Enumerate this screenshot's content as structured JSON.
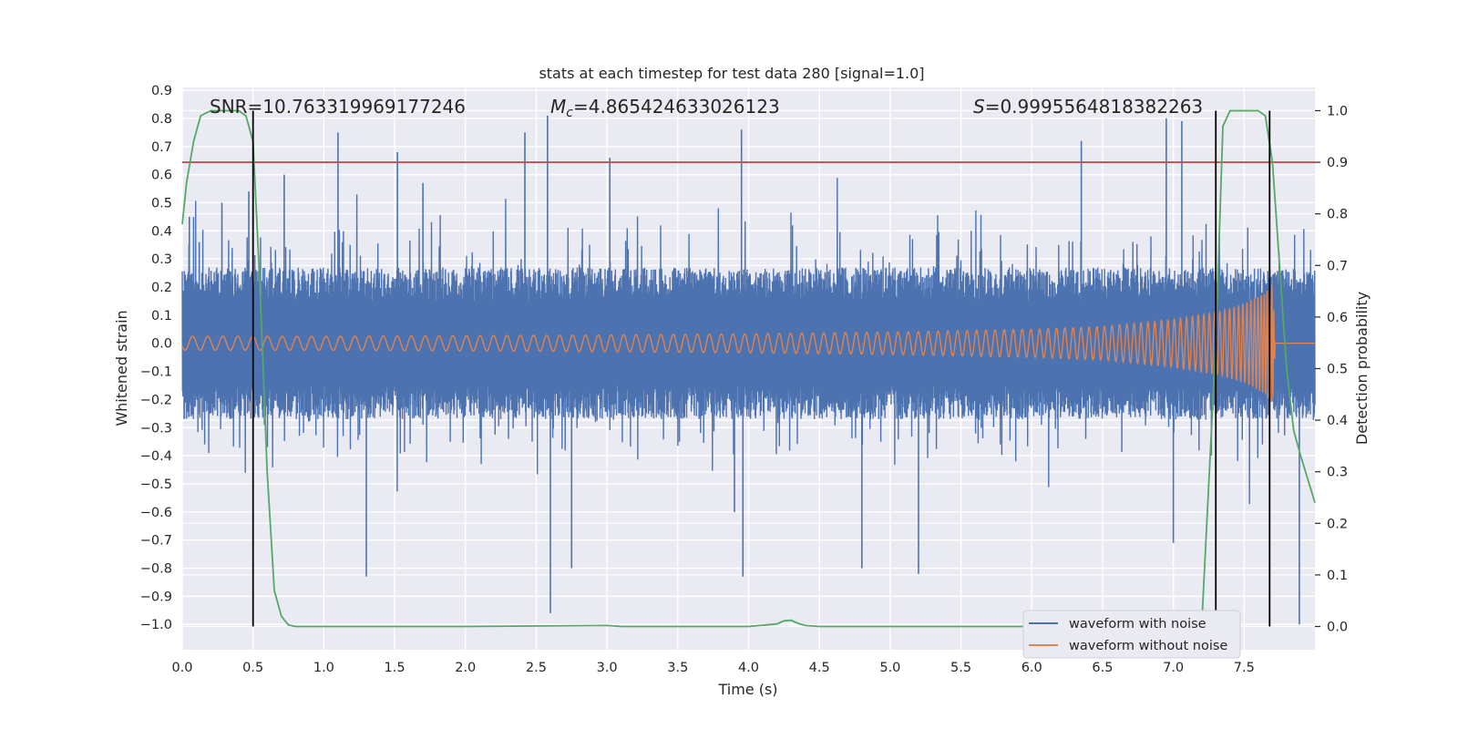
{
  "chart_data": {
    "type": "line",
    "title": "stats at each timestep for test data 280 [signal=1.0]",
    "xlabel": "Time (s)",
    "ylabel": "Whitened strain",
    "y2label": "Detection probability",
    "xlim": [
      0.0,
      8.0
    ],
    "ylim": [
      -1.09,
      0.91
    ],
    "y2lim": [
      -0.045,
      1.045
    ],
    "x_ticks": [
      0.0,
      0.5,
      1.0,
      1.5,
      2.0,
      2.5,
      3.0,
      3.5,
      4.0,
      4.5,
      5.0,
      5.5,
      6.0,
      6.5,
      7.0,
      7.5
    ],
    "x_tick_labels": [
      "0.0",
      "0.5",
      "1.0",
      "1.5",
      "2.0",
      "2.5",
      "3.0",
      "3.5",
      "4.0",
      "4.5",
      "5.0",
      "5.5",
      "6.0",
      "6.5",
      "7.0",
      "7.5"
    ],
    "y_ticks": [
      0.9,
      0.8,
      0.7,
      0.6,
      0.5,
      0.4,
      0.3,
      0.2,
      0.1,
      0.0,
      -0.1,
      -0.2,
      -0.3,
      -0.4,
      -0.5,
      -0.6,
      -0.7,
      -0.8,
      -0.9,
      -1.0
    ],
    "y_tick_labels": [
      "0.9",
      "0.8",
      "0.7",
      "0.6",
      "0.5",
      "0.4",
      "0.3",
      "0.2",
      "0.1",
      "0.0",
      "−0.1",
      "−0.2",
      "−0.3",
      "−0.4",
      "−0.5",
      "−0.6",
      "−0.7",
      "−0.8",
      "−0.9",
      "−1.0"
    ],
    "y2_ticks": [
      1.0,
      0.9,
      0.8,
      0.7,
      0.6,
      0.5,
      0.4,
      0.3,
      0.2,
      0.1,
      0.0
    ],
    "y2_tick_labels": [
      "1.0",
      "0.9",
      "0.8",
      "0.7",
      "0.6",
      "0.5",
      "0.4",
      "0.3",
      "0.2",
      "0.1",
      "0.0"
    ],
    "grid": true,
    "legend_position": "bottom-right",
    "annotations": [
      {
        "text": "SNR=10.763319969177246",
        "x": 0.2
      },
      {
        "text": "M_c=4.865424633026123",
        "x": 2.6
      },
      {
        "text": "S=0.9995564818382263",
        "x": 5.6
      }
    ],
    "threshold": {
      "axis": "y2",
      "value": 0.9,
      "color": "#c44e52"
    },
    "vertical_markers": [
      0.5,
      7.3,
      7.68
    ],
    "series": [
      {
        "name": "waveform with noise",
        "axis": "y",
        "color": "#4c72b0",
        "description_values": {
          "dense_band_range": [
            -0.27,
            0.27
          ],
          "spike_peaks": [
            {
              "x": 0.05,
              "y": 0.45
            },
            {
              "x": 0.12,
              "y": 0.36
            },
            {
              "x": 0.28,
              "y": 0.5
            },
            {
              "x": 0.47,
              "y": 0.54
            },
            {
              "x": 0.72,
              "y": 0.6
            },
            {
              "x": 1.1,
              "y": 0.75
            },
            {
              "x": 1.3,
              "y": -0.83
            },
            {
              "x": 1.52,
              "y": 0.68
            },
            {
              "x": 1.7,
              "y": 0.57
            },
            {
              "x": 2.42,
              "y": 0.75
            },
            {
              "x": 2.58,
              "y": 0.81
            },
            {
              "x": 2.6,
              "y": -0.96
            },
            {
              "x": 2.75,
              "y": -0.8
            },
            {
              "x": 3.02,
              "y": 0.66
            },
            {
              "x": 3.9,
              "y": -0.6
            },
            {
              "x": 3.95,
              "y": 0.76
            },
            {
              "x": 3.96,
              "y": -0.83
            },
            {
              "x": 4.8,
              "y": -0.8
            },
            {
              "x": 5.2,
              "y": -0.82
            },
            {
              "x": 6.35,
              "y": 0.72
            },
            {
              "x": 6.95,
              "y": 0.8
            },
            {
              "x": 7.0,
              "y": -0.71
            },
            {
              "x": 7.06,
              "y": 0.79
            },
            {
              "x": 7.89,
              "y": -1.0
            }
          ]
        }
      },
      {
        "name": "waveform without noise",
        "axis": "y",
        "color": "#dd8452",
        "description_values": {
          "envelope_x": [
            0.0,
            1.0,
            2.0,
            3.0,
            4.0,
            5.0,
            6.0,
            6.5,
            7.0,
            7.3,
            7.5,
            7.65,
            7.7,
            7.72,
            8.0
          ],
          "envelope_y": [
            0.025,
            0.025,
            0.027,
            0.03,
            0.034,
            0.04,
            0.05,
            0.06,
            0.085,
            0.11,
            0.14,
            0.18,
            0.22,
            0.0,
            0.0
          ]
        }
      },
      {
        "name": "detection probability",
        "axis": "y2",
        "color": "#55a868",
        "x": [
          0.0,
          0.03,
          0.08,
          0.13,
          0.2,
          0.3,
          0.4,
          0.45,
          0.5,
          0.55,
          0.6,
          0.65,
          0.7,
          0.75,
          0.8,
          1.0,
          2.0,
          3.0,
          3.1,
          4.0,
          4.2,
          4.25,
          4.3,
          4.35,
          4.4,
          4.5,
          5.0,
          6.0,
          7.0,
          7.1,
          7.2,
          7.3,
          7.35,
          7.4,
          7.5,
          7.6,
          7.65,
          7.7,
          7.75,
          7.8,
          7.85,
          7.9,
          8.0
        ],
        "y": [
          0.78,
          0.86,
          0.94,
          0.99,
          1.0,
          1.0,
          1.0,
          0.99,
          0.94,
          0.65,
          0.3,
          0.07,
          0.02,
          0.003,
          0.0,
          0.0,
          0.0,
          0.002,
          0.0,
          0.0,
          0.005,
          0.011,
          0.012,
          0.006,
          0.002,
          0.0,
          0.0,
          0.0,
          0.0,
          0.0,
          0.0,
          0.55,
          0.97,
          1.0,
          1.0,
          1.0,
          0.99,
          0.9,
          0.7,
          0.5,
          0.38,
          0.33,
          0.24
        ]
      }
    ]
  }
}
